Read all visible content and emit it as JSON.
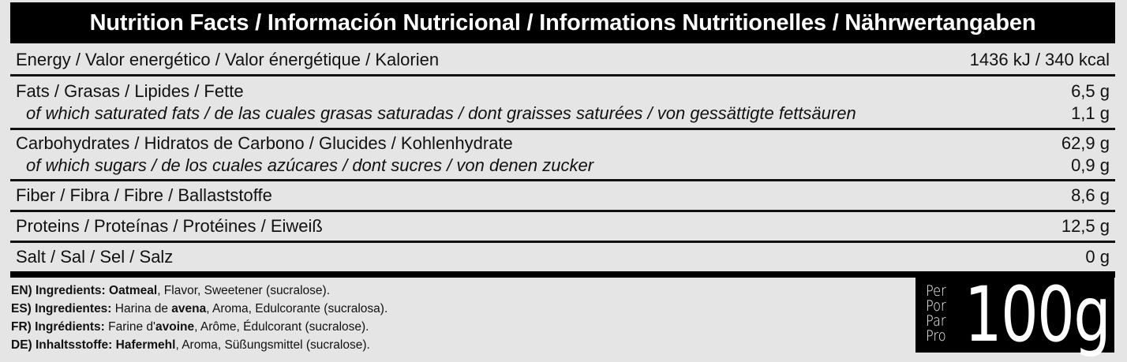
{
  "title": "Nutrition Facts / Información Nutricional / Informations Nutritionelles / Nährwertangaben",
  "rows": [
    {
      "label": "Energy / Valor energético / Valor énergétique / Kalorien",
      "value": "1436 kJ / 340 kcal"
    },
    {
      "label": "Fats / Grasas / Lipides / Fette",
      "value": "6,5 g",
      "sub_label": "of which saturated fats / de las cuales grasas saturadas / dont graisses saturées / von gessättigte fettsäuren",
      "sub_value": "1,1 g"
    },
    {
      "label": "Carbohydrates / Hidratos de Carbono / Glucides / Kohlenhydrate",
      "value": "62,9 g",
      "sub_label": "of which sugars / de los cuales azúcares / dont sucres / von denen zucker",
      "sub_value": "0,9 g"
    },
    {
      "label": "Fiber / Fibra / Fibre / Ballaststoffe",
      "value": "8,6 g"
    },
    {
      "label": "Proteins / Proteínas / Protéines / Eiweiß",
      "value": "12,5 g"
    },
    {
      "label": "Salt / Sal / Sel / Salz",
      "value": "0 g"
    }
  ],
  "ingredients": [
    {
      "prefix": "EN) Ingredients:",
      "bold": "Oatmeal",
      "rest": ", Flavor, Sweetener (sucralose)."
    },
    {
      "prefix": "ES) Ingredientes:",
      "pre": " Harina de ",
      "bold": "avena",
      "rest": ", Aroma, Edulcorante (sucralosa)."
    },
    {
      "prefix": "FR) Ingrédients:",
      "pre": " Farine d'",
      "bold": "avoine",
      "rest": ", Arôme, Édulcorant (sucralose)."
    },
    {
      "prefix": "DE) Inhaltsstoffe:",
      "pre": " ",
      "bold": "Hafermehl",
      "rest": ", Aroma, Süßungsmittel (sucralose)."
    }
  ],
  "serving": {
    "words": [
      "Per",
      "Por",
      "Par",
      "Pro"
    ],
    "amount": "100g"
  }
}
